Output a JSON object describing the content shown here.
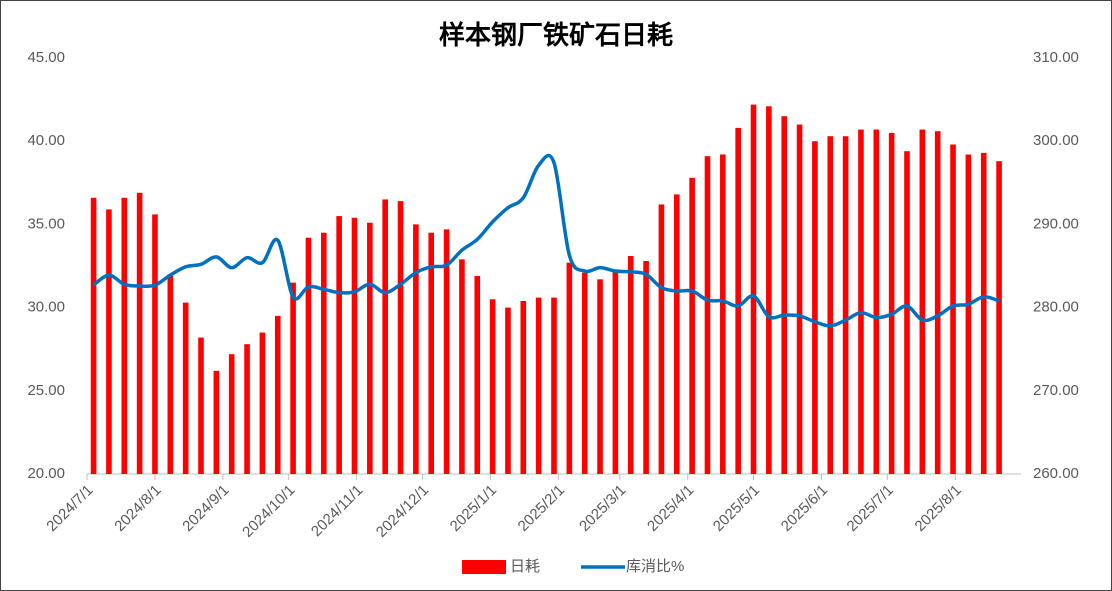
{
  "chart_data": {
    "type": "bar-line",
    "title": "样本钢厂铁矿石日耗",
    "x": [
      "2024/7/4",
      "2024/7/11",
      "2024/7/18",
      "2024/7/25",
      "2024/8/1",
      "2024/8/8",
      "2024/8/15",
      "2024/8/22",
      "2024/8/29",
      "2024/9/5",
      "2024/9/12",
      "2024/9/19",
      "2024/9/26",
      "2024/10/3",
      "2024/10/10",
      "2024/10/17",
      "2024/10/24",
      "2024/10/31",
      "2024/11/7",
      "2024/11/14",
      "2024/11/21",
      "2024/11/28",
      "2024/12/5",
      "2024/12/12",
      "2024/12/19",
      "2024/12/26",
      "2025/1/2",
      "2025/1/9",
      "2025/1/16",
      "2025/1/23",
      "2025/1/30",
      "2025/2/6",
      "2025/2/13",
      "2025/2/20",
      "2025/2/27",
      "2025/3/6",
      "2025/3/13",
      "2025/3/20",
      "2025/3/27",
      "2025/4/3",
      "2025/4/10",
      "2025/4/17",
      "2025/4/24",
      "2025/5/1",
      "2025/5/8",
      "2025/5/15",
      "2025/5/22",
      "2025/5/29",
      "2025/6/5",
      "2025/6/12",
      "2025/6/19",
      "2025/6/26",
      "2025/7/3",
      "2025/7/10",
      "2025/7/17",
      "2025/7/24",
      "2025/7/31",
      "2025/8/7",
      "2025/8/14",
      "2025/8/21"
    ],
    "series": [
      {
        "name": "日耗",
        "type": "bar",
        "axis": "y",
        "color": "#ff0000",
        "values": [
          36.6,
          35.9,
          36.6,
          36.9,
          35.6,
          32.0,
          30.3,
          28.2,
          26.2,
          27.2,
          27.8,
          28.5,
          29.5,
          31.5,
          34.2,
          34.5,
          35.5,
          35.4,
          35.1,
          36.5,
          36.4,
          35.0,
          34.5,
          34.7,
          32.9,
          31.9,
          30.5,
          30.0,
          30.4,
          30.6,
          30.6,
          32.7,
          32.1,
          31.7,
          32.2,
          33.1,
          32.8,
          36.2,
          36.8,
          37.8,
          39.1,
          39.2,
          40.8,
          42.2,
          42.1,
          41.5,
          41.0,
          40.0,
          40.3,
          40.3,
          40.7,
          40.7,
          40.5,
          39.4,
          40.7,
          40.6,
          39.8,
          39.2,
          39.3,
          38.8
        ]
      },
      {
        "name": "库消比%",
        "type": "line",
        "axis": "y2",
        "color": "#0070c0",
        "values": [
          282.7,
          283.9,
          282.8,
          282.6,
          282.7,
          283.9,
          284.9,
          285.2,
          286.1,
          284.8,
          286.0,
          285.4,
          288.1,
          281.3,
          282.5,
          282.2,
          281.8,
          281.9,
          282.8,
          281.8,
          282.8,
          284.2,
          284.9,
          285.1,
          286.9,
          288.2,
          290.3,
          292.0,
          293.2,
          297.1,
          297.4,
          286.3,
          284.4,
          284.8,
          284.4,
          284.3,
          284.0,
          282.4,
          282.0,
          282.0,
          280.9,
          280.8,
          280.2,
          281.4,
          278.9,
          279.1,
          279.0,
          278.3,
          277.8,
          278.5,
          279.4,
          278.8,
          279.2,
          280.2,
          278.5,
          279.0,
          280.2,
          280.4,
          281.3,
          280.8
        ]
      }
    ],
    "xlim": [
      "2024/7/1",
      "2025/8/31"
    ],
    "xticks": [
      "2024/7/1",
      "2024/8/1",
      "2024/9/1",
      "2024/10/1",
      "2024/11/1",
      "2024/12/1",
      "2025/1/1",
      "2025/2/1",
      "2025/3/1",
      "2025/4/1",
      "2025/5/1",
      "2025/6/1",
      "2025/7/1",
      "2025/8/1"
    ],
    "ylim": [
      20,
      45
    ],
    "yticks": [
      {
        "value": 20,
        "label": "20.00"
      },
      {
        "value": 25,
        "label": "25.00"
      },
      {
        "value": 30,
        "label": "30.00"
      },
      {
        "value": 35,
        "label": "35.00"
      },
      {
        "value": 40,
        "label": "40.00"
      },
      {
        "value": 45,
        "label": "45.00"
      }
    ],
    "y2lim": [
      260,
      310
    ],
    "y2ticks": [
      {
        "value": 260,
        "label": "260.00"
      },
      {
        "value": 270,
        "label": "270.00"
      },
      {
        "value": 280,
        "label": "280.00"
      },
      {
        "value": 290,
        "label": "290.00"
      },
      {
        "value": 300,
        "label": "300.00"
      },
      {
        "value": 310,
        "label": "310.00"
      }
    ],
    "grid": false,
    "legend": "bottom"
  }
}
